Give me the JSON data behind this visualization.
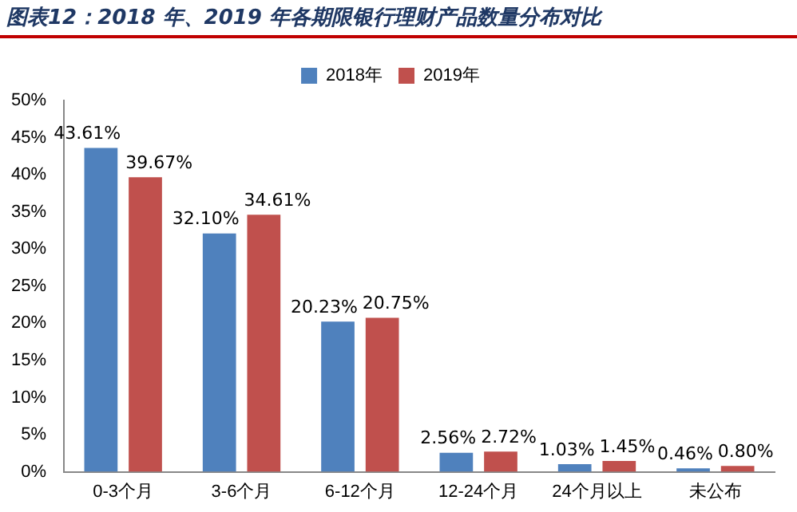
{
  "chart_data": {
    "type": "bar",
    "title": "图表12：2018 年、2019 年各期限银行理财产品数量分布对比",
    "categories": [
      "0-3个月",
      "3-6个月",
      "6-12个月",
      "12-24个月",
      "24个月以上",
      "未公布"
    ],
    "series": [
      {
        "name": "2018年",
        "color": "#4f81bd",
        "values": [
          43.61,
          32.1,
          20.23,
          2.56,
          1.03,
          0.46
        ],
        "value_labels": [
          "43.61%",
          "32.10%",
          "20.23%",
          "2.56%",
          "1.03%",
          "0.46%"
        ]
      },
      {
        "name": "2019年",
        "color": "#c0504d",
        "values": [
          39.67,
          34.61,
          20.75,
          2.72,
          1.45,
          0.8
        ],
        "value_labels": [
          "39.67%",
          "34.61%",
          "20.75%",
          "2.72%",
          "1.45%",
          "0.80%"
        ]
      }
    ],
    "ylim": [
      0,
      50
    ],
    "yticks": [
      {
        "value": 0,
        "label": "0%"
      },
      {
        "value": 5,
        "label": "5%"
      },
      {
        "value": 10,
        "label": "10%"
      },
      {
        "value": 15,
        "label": "15%"
      },
      {
        "value": 20,
        "label": "20%"
      },
      {
        "value": 25,
        "label": "25%"
      },
      {
        "value": 30,
        "label": "30%"
      },
      {
        "value": 35,
        "label": "35%"
      },
      {
        "value": 40,
        "label": "40%"
      },
      {
        "value": 45,
        "label": "45%"
      },
      {
        "value": 50,
        "label": "50%"
      }
    ],
    "grid": false,
    "legend": "top"
  }
}
